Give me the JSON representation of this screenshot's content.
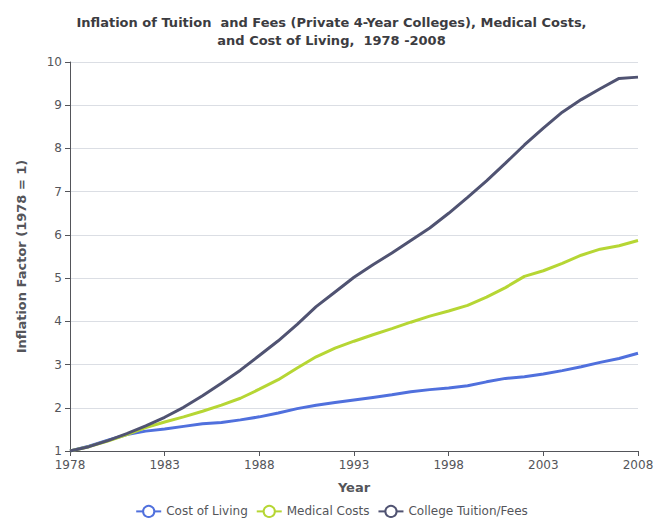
{
  "chart_data": {
    "type": "line",
    "title": "Inflation of Tuition  and Fees (Private 4-Year Colleges), Medical Costs,\nand Cost of Living,  1978 -2008",
    "x_label": "Year",
    "y_label": "Inflation Factor (1978 = 1)",
    "x": [
      1978,
      1979,
      1980,
      1981,
      1982,
      1983,
      1984,
      1985,
      1986,
      1987,
      1988,
      1989,
      1990,
      1991,
      1992,
      1993,
      1994,
      1995,
      1996,
      1997,
      1998,
      1999,
      2000,
      2001,
      2002,
      2003,
      2004,
      2005,
      2006,
      2007,
      2008
    ],
    "series": [
      {
        "name": "Cost of Living",
        "values": [
          1.0,
          1.11,
          1.25,
          1.38,
          1.46,
          1.51,
          1.57,
          1.63,
          1.66,
          1.72,
          1.79,
          1.88,
          1.98,
          2.06,
          2.12,
          2.18,
          2.24,
          2.3,
          2.37,
          2.42,
          2.46,
          2.51,
          2.6,
          2.68,
          2.72,
          2.78,
          2.86,
          2.95,
          3.05,
          3.14,
          3.26
        ]
      },
      {
        "name": "Medical Costs",
        "values": [
          1.0,
          1.1,
          1.23,
          1.38,
          1.54,
          1.67,
          1.79,
          1.92,
          2.06,
          2.22,
          2.43,
          2.65,
          2.92,
          3.18,
          3.38,
          3.54,
          3.69,
          3.83,
          3.98,
          4.12,
          4.24,
          4.37,
          4.56,
          4.78,
          5.04,
          5.17,
          5.34,
          5.53,
          5.67,
          5.75,
          5.87
        ]
      },
      {
        "name": "College Tuition/Fees",
        "values": [
          1.0,
          1.1,
          1.24,
          1.4,
          1.58,
          1.78,
          2.01,
          2.28,
          2.57,
          2.87,
          3.21,
          3.55,
          3.93,
          4.34,
          4.68,
          5.02,
          5.31,
          5.58,
          5.87,
          6.16,
          6.5,
          6.87,
          7.25,
          7.66,
          8.08,
          8.47,
          8.84,
          9.13,
          9.38,
          9.62,
          9.65
        ]
      }
    ],
    "xlim": [
      1978,
      2008
    ],
    "xticks": [
      1978,
      1983,
      1988,
      1993,
      1998,
      2003,
      2008
    ],
    "ylim": [
      1,
      10
    ],
    "yticks": [
      1,
      2,
      3,
      4,
      5,
      6,
      7,
      8,
      9,
      10
    ],
    "grid": true,
    "legend": "bottom"
  }
}
